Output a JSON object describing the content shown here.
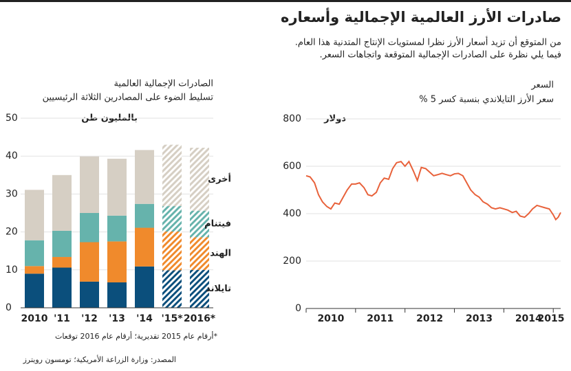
{
  "title": "صادرات الأرز العالمية الإجمالية وأسعاره",
  "subtitle": [
    "من المتوقع أن تزيد أسعار الأرز نظرا لمستويات الإنتاج المتدنية هذا العام.",
    "فيما يلي نظرة على الصادرات الإجمالية المتوقعة واتجاهات السعر."
  ],
  "source": "المصدر: وزارة الزراعة الأمريكية؛ تومسون رويترز",
  "chart_data": [
    {
      "type": "bar",
      "stacked": true,
      "title": "الصادرات الإجمالية العالمية",
      "subtitle": "تسليط الضوء على المصادرين الثلاثة الرئيسيين",
      "y_unit": "بالمليون طن",
      "categories": [
        "2010",
        "'11",
        "'12",
        "'13",
        "'14",
        "'15*",
        "2016*"
      ],
      "hatched": [
        false,
        false,
        false,
        false,
        false,
        true,
        true
      ],
      "series": [
        {
          "name": "تايلاند",
          "color": "#0b4f7c",
          "values": [
            9,
            10.6,
            6.9,
            6.7,
            10.9,
            9.9,
            10
          ]
        },
        {
          "name": "الهند",
          "color": "#f08a2c",
          "values": [
            2,
            2.8,
            10.4,
            10.8,
            10.2,
            10.2,
            8.6
          ]
        },
        {
          "name": "فيتنام",
          "color": "#66b3ac",
          "values": [
            6.8,
            6.9,
            7.7,
            6.8,
            6.3,
            6.7,
            7
          ]
        },
        {
          "name": "أخرى",
          "color": "#d6cfc4",
          "values": [
            13.3,
            14.7,
            14.9,
            15,
            14.2,
            16.2,
            16.6
          ]
        }
      ],
      "ylim": [
        0,
        50
      ],
      "yticks": [
        0,
        10,
        20,
        30,
        40,
        50
      ],
      "grid": true,
      "footnote": "*أرقام عام 2015 تقديرية؛ أرقام عام 2016 توقعات"
    },
    {
      "type": "line",
      "title": "السعر",
      "subtitle": "سعر الأرز التايلاندي بنسبة كسر 5 %",
      "y_unit": "دولار",
      "x": [
        2010,
        2010.08,
        2010.17,
        2010.25,
        2010.33,
        2010.42,
        2010.5,
        2010.58,
        2010.67,
        2010.75,
        2010.83,
        2010.92,
        2011,
        2011.08,
        2011.17,
        2011.25,
        2011.33,
        2011.42,
        2011.5,
        2011.58,
        2011.67,
        2011.75,
        2011.83,
        2011.92,
        2012,
        2012.08,
        2012.17,
        2012.25,
        2012.33,
        2012.42,
        2012.5,
        2012.58,
        2012.67,
        2012.75,
        2012.83,
        2012.92,
        2013,
        2013.08,
        2013.17,
        2013.25,
        2013.33,
        2013.42,
        2013.5,
        2013.58,
        2013.67,
        2013.75,
        2013.83,
        2013.92,
        2014,
        2014.08,
        2014.17,
        2014.25,
        2014.33,
        2014.42,
        2014.5,
        2014.58,
        2014.67,
        2014.75,
        2014.83,
        2014.92,
        2015,
        2015.05,
        2015.1,
        2015.15
      ],
      "series": [
        {
          "color": "#e8613a",
          "values": [
            560,
            555,
            530,
            480,
            450,
            430,
            420,
            445,
            440,
            470,
            500,
            525,
            525,
            530,
            510,
            480,
            475,
            490,
            530,
            550,
            545,
            590,
            615,
            620,
            600,
            620,
            580,
            540,
            595,
            590,
            575,
            560,
            565,
            570,
            565,
            560,
            568,
            570,
            560,
            530,
            500,
            480,
            470,
            450,
            440,
            425,
            420,
            425,
            420,
            415,
            405,
            410,
            390,
            385,
            400,
            420,
            435,
            430,
            425,
            420,
            395,
            375,
            385,
            405
          ]
        }
      ],
      "xlim": [
        2010,
        2015.15
      ],
      "xticks": [
        2010,
        2011,
        2012,
        2013,
        2014,
        2015
      ],
      "ylim": [
        0,
        800
      ],
      "yticks": [
        0,
        200,
        400,
        600,
        800
      ],
      "grid": true
    }
  ]
}
